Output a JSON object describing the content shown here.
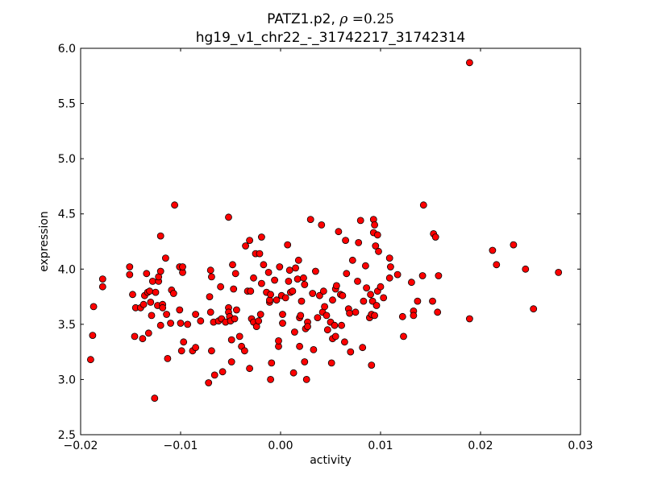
{
  "chart_data": {
    "type": "scatter",
    "title_prefix": "PATZ1.p2, ",
    "title_rho_symbol": "ρ",
    "title_rho_eq": " =",
    "title_rho_value": "0.25",
    "subtitle": "hg19_v1_chr22_-_31742217_31742314",
    "xlabel": "activity",
    "ylabel": "expression",
    "xlim": [
      -0.02,
      0.03
    ],
    "ylim": [
      2.5,
      6.0
    ],
    "x_ticks": [
      -0.02,
      -0.01,
      0.0,
      0.01,
      0.02,
      0.03
    ],
    "x_tick_labels": [
      "−0.02",
      "−0.01",
      "0.00",
      "0.01",
      "0.02",
      "0.03"
    ],
    "y_ticks": [
      2.5,
      3.0,
      3.5,
      4.0,
      4.5,
      5.0,
      5.5,
      6.0
    ],
    "y_tick_labels": [
      "2.5",
      "3.0",
      "3.5",
      "4.0",
      "4.5",
      "5.0",
      "5.5",
      "6.0"
    ],
    "marker_color": "#ff0000",
    "marker_edge_color": "#000000",
    "points": [
      [
        -0.019,
        3.18
      ],
      [
        -0.0188,
        3.4
      ],
      [
        -0.0187,
        3.66
      ],
      [
        -0.0178,
        3.91
      ],
      [
        -0.0178,
        3.84
      ],
      [
        -0.0151,
        4.02
      ],
      [
        -0.0151,
        3.95
      ],
      [
        -0.0148,
        3.77
      ],
      [
        -0.0146,
        3.39
      ],
      [
        -0.0145,
        3.65
      ],
      [
        -0.014,
        3.65
      ],
      [
        -0.0138,
        3.37
      ],
      [
        -0.0137,
        3.68
      ],
      [
        -0.0136,
        3.76
      ],
      [
        -0.0134,
        3.96
      ],
      [
        -0.0133,
        3.79
      ],
      [
        -0.0131,
        3.8
      ],
      [
        -0.0132,
        3.42
      ],
      [
        -0.013,
        3.7
      ],
      [
        -0.0129,
        3.58
      ],
      [
        -0.0128,
        3.89
      ],
      [
        -0.0126,
        2.83
      ],
      [
        -0.0125,
        3.79
      ],
      [
        -0.0123,
        3.67
      ],
      [
        -0.0122,
        3.89
      ],
      [
        -0.0122,
        3.93
      ],
      [
        -0.012,
        3.98
      ],
      [
        -0.012,
        4.3
      ],
      [
        -0.012,
        3.49
      ],
      [
        -0.0118,
        3.68
      ],
      [
        -0.0118,
        3.65
      ],
      [
        -0.0115,
        4.1
      ],
      [
        -0.0114,
        3.59
      ],
      [
        -0.0113,
        3.19
      ],
      [
        -0.011,
        3.51
      ],
      [
        -0.0109,
        3.81
      ],
      [
        -0.0107,
        3.78
      ],
      [
        -0.0106,
        4.58
      ],
      [
        -0.0101,
        4.02
      ],
      [
        -0.0101,
        3.63
      ],
      [
        -0.01,
        3.51
      ],
      [
        -0.0099,
        3.26
      ],
      [
        -0.0098,
        3.97
      ],
      [
        -0.0098,
        4.02
      ],
      [
        -0.0097,
        3.34
      ],
      [
        -0.0093,
        3.5
      ],
      [
        -0.0088,
        3.26
      ],
      [
        -0.0085,
        3.59
      ],
      [
        -0.0085,
        3.29
      ],
      [
        -0.008,
        3.53
      ],
      [
        -0.0072,
        2.97
      ],
      [
        -0.0071,
        3.75
      ],
      [
        -0.007,
        3.99
      ],
      [
        -0.007,
        3.61
      ],
      [
        -0.0069,
        3.93
      ],
      [
        -0.0069,
        3.26
      ],
      [
        -0.0067,
        3.52
      ],
      [
        -0.0066,
        3.04
      ],
      [
        -0.0062,
        3.53
      ],
      [
        -0.006,
        3.84
      ],
      [
        -0.0059,
        3.55
      ],
      [
        -0.0058,
        3.07
      ],
      [
        -0.0055,
        3.52
      ],
      [
        -0.0052,
        4.47
      ],
      [
        -0.0052,
        3.65
      ],
      [
        -0.0052,
        3.61
      ],
      [
        -0.0051,
        3.57
      ],
      [
        -0.005,
        3.53
      ],
      [
        -0.0049,
        3.16
      ],
      [
        -0.0049,
        3.36
      ],
      [
        -0.0048,
        4.04
      ],
      [
        -0.0047,
        3.82
      ],
      [
        -0.0046,
        3.55
      ],
      [
        -0.0045,
        3.96
      ],
      [
        -0.0044,
        3.63
      ],
      [
        -0.0041,
        3.39
      ],
      [
        -0.0039,
        3.3
      ],
      [
        -0.0036,
        3.26
      ],
      [
        -0.0035,
        4.21
      ],
      [
        -0.0033,
        3.8
      ],
      [
        -0.0031,
        3.1
      ],
      [
        -0.0031,
        4.26
      ],
      [
        -0.003,
        3.8
      ],
      [
        -0.0029,
        3.55
      ],
      [
        -0.0027,
        3.52
      ],
      [
        -0.0027,
        3.92
      ],
      [
        -0.0025,
        4.14
      ],
      [
        -0.0024,
        3.48
      ],
      [
        -0.0022,
        3.53
      ],
      [
        -0.0021,
        4.14
      ],
      [
        -0.002,
        3.59
      ],
      [
        -0.0019,
        4.29
      ],
      [
        -0.0019,
        3.87
      ],
      [
        -0.0017,
        4.04
      ],
      [
        -0.0014,
        3.79
      ],
      [
        -0.0012,
        3.97
      ],
      [
        -0.0011,
        3.7
      ],
      [
        -0.0011,
        3.72
      ],
      [
        -0.001,
        3.77
      ],
      [
        -0.001,
        3.0
      ],
      [
        -0.0009,
        3.15
      ],
      [
        -0.0006,
        3.9
      ],
      [
        -0.0004,
        3.72
      ],
      [
        -0.0002,
        3.3
      ],
      [
        -0.0002,
        3.35
      ],
      [
        -0.0001,
        4.02
      ],
      [
        0.0001,
        3.76
      ],
      [
        0.0002,
        3.51
      ],
      [
        0.0002,
        3.59
      ],
      [
        0.0005,
        3.74
      ],
      [
        0.0007,
        4.22
      ],
      [
        0.0008,
        3.89
      ],
      [
        0.0009,
        3.99
      ],
      [
        0.001,
        3.79
      ],
      [
        0.0012,
        3.8
      ],
      [
        0.0013,
        3.06
      ],
      [
        0.0014,
        3.43
      ],
      [
        0.0015,
        4.01
      ],
      [
        0.0017,
        3.91
      ],
      [
        0.0018,
        4.08
      ],
      [
        0.0019,
        3.56
      ],
      [
        0.0019,
        3.3
      ],
      [
        0.002,
        3.58
      ],
      [
        0.0021,
        3.71
      ],
      [
        0.0023,
        3.92
      ],
      [
        0.0024,
        3.86
      ],
      [
        0.0024,
        3.16
      ],
      [
        0.0025,
        3.46
      ],
      [
        0.0026,
        3.0
      ],
      [
        0.0027,
        3.52
      ],
      [
        0.0027,
        3.48
      ],
      [
        0.003,
        4.45
      ],
      [
        0.0032,
        3.78
      ],
      [
        0.0033,
        3.27
      ],
      [
        0.0035,
        3.98
      ],
      [
        0.0037,
        3.56
      ],
      [
        0.0039,
        3.76
      ],
      [
        0.0041,
        4.4
      ],
      [
        0.0042,
        3.61
      ],
      [
        0.0043,
        3.8
      ],
      [
        0.0044,
        3.66
      ],
      [
        0.0046,
        3.58
      ],
      [
        0.0047,
        3.45
      ],
      [
        0.005,
        3.52
      ],
      [
        0.0051,
        3.15
      ],
      [
        0.0052,
        3.37
      ],
      [
        0.0052,
        3.72
      ],
      [
        0.0054,
        3.49
      ],
      [
        0.0055,
        3.39
      ],
      [
        0.0055,
        3.82
      ],
      [
        0.0056,
        3.85
      ],
      [
        0.0058,
        4.34
      ],
      [
        0.006,
        3.77
      ],
      [
        0.0061,
        3.49
      ],
      [
        0.0062,
        3.76
      ],
      [
        0.0064,
        3.34
      ],
      [
        0.0065,
        4.26
      ],
      [
        0.0066,
        3.96
      ],
      [
        0.0068,
        3.64
      ],
      [
        0.0069,
        3.6
      ],
      [
        0.007,
        3.25
      ],
      [
        0.0072,
        4.08
      ],
      [
        0.0075,
        3.61
      ],
      [
        0.0077,
        3.89
      ],
      [
        0.0078,
        4.24
      ],
      [
        0.008,
        4.44
      ],
      [
        0.0082,
        3.29
      ],
      [
        0.0083,
        3.71
      ],
      [
        0.0085,
        4.03
      ],
      [
        0.0086,
        3.83
      ],
      [
        0.0089,
        3.56
      ],
      [
        0.009,
        3.77
      ],
      [
        0.0091,
        3.13
      ],
      [
        0.0091,
        3.59
      ],
      [
        0.0092,
        3.71
      ],
      [
        0.0093,
        4.45
      ],
      [
        0.0093,
        4.33
      ],
      [
        0.0094,
        4.4
      ],
      [
        0.0094,
        3.58
      ],
      [
        0.0095,
        4.21
      ],
      [
        0.0096,
        3.67
      ],
      [
        0.0097,
        3.8
      ],
      [
        0.0097,
        4.31
      ],
      [
        0.0098,
        4.16
      ],
      [
        0.01,
        3.84
      ],
      [
        0.0103,
        3.74
      ],
      [
        0.0109,
        3.92
      ],
      [
        0.0109,
        4.1
      ],
      [
        0.011,
        4.02
      ],
      [
        0.0117,
        3.95
      ],
      [
        0.0122,
        3.57
      ],
      [
        0.0123,
        3.39
      ],
      [
        0.0131,
        3.88
      ],
      [
        0.0133,
        3.62
      ],
      [
        0.0133,
        3.58
      ],
      [
        0.0137,
        3.71
      ],
      [
        0.0142,
        3.94
      ],
      [
        0.0143,
        4.58
      ],
      [
        0.0152,
        3.71
      ],
      [
        0.0153,
        4.32
      ],
      [
        0.0155,
        4.29
      ],
      [
        0.0157,
        3.61
      ],
      [
        0.0158,
        3.94
      ],
      [
        0.0189,
        3.55
      ],
      [
        0.0189,
        5.87
      ],
      [
        0.0212,
        4.17
      ],
      [
        0.0216,
        4.04
      ],
      [
        0.0233,
        4.22
      ],
      [
        0.0245,
        4.0
      ],
      [
        0.0253,
        3.64
      ],
      [
        0.0278,
        3.97
      ]
    ]
  }
}
